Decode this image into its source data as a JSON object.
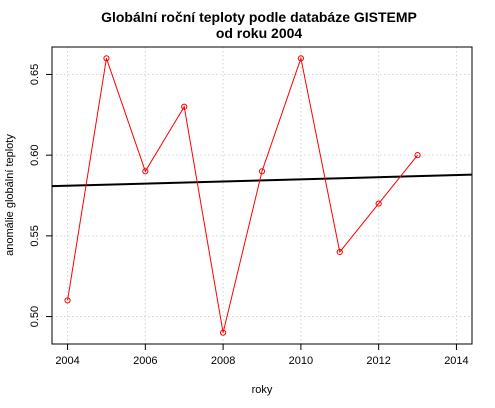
{
  "chart_data": {
    "type": "line",
    "title": "Globální roční teploty podle databáze GISTEMP",
    "subtitle": "od roku 2004",
    "xlabel": "roky",
    "ylabel": "anomálie globální teploty",
    "xlim": [
      2003.6,
      2014.4
    ],
    "ylim": [
      0.483,
      0.667
    ],
    "x_ticks": [
      2004,
      2006,
      2008,
      2010,
      2012,
      2014
    ],
    "y_ticks": [
      0.5,
      0.55,
      0.6,
      0.65
    ],
    "x_tick_labels": [
      "2004",
      "2006",
      "2008",
      "2010",
      "2012",
      "2014"
    ],
    "y_tick_labels": [
      "0.50",
      "0.55",
      "0.60",
      "0.65"
    ],
    "grid": true,
    "series": [
      {
        "color": "#ff0000",
        "marker": "open-circle",
        "x": [
          2004,
          2005,
          2006,
          2007,
          2008,
          2009,
          2010,
          2011,
          2012,
          2013
        ],
        "values": [
          0.51,
          0.66,
          0.59,
          0.63,
          0.49,
          0.59,
          0.66,
          0.54,
          0.57,
          0.6
        ]
      }
    ],
    "trendline": {
      "color": "#000000",
      "x": [
        2003.6,
        2014.4
      ],
      "values": [
        0.5808,
        0.5879
      ]
    }
  }
}
